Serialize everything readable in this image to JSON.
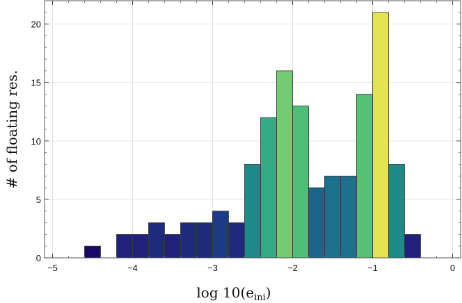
{
  "chart_data": {
    "type": "bar",
    "bin_width": 0.2,
    "bins": [
      {
        "start": -4.6,
        "end": -4.4,
        "count": 1,
        "color": "#1a0a66"
      },
      {
        "start": -4.2,
        "end": -4.0,
        "count": 2,
        "color": "#21207a"
      },
      {
        "start": -4.0,
        "end": -3.8,
        "count": 2,
        "color": "#21207a"
      },
      {
        "start": -3.8,
        "end": -3.6,
        "count": 3,
        "color": "#1e2a7e"
      },
      {
        "start": -3.6,
        "end": -3.4,
        "count": 2,
        "color": "#21207a"
      },
      {
        "start": -3.4,
        "end": -3.2,
        "count": 3,
        "color": "#1e2a7e"
      },
      {
        "start": -3.2,
        "end": -3.0,
        "count": 3,
        "color": "#1e2a7e"
      },
      {
        "start": -3.0,
        "end": -2.8,
        "count": 4,
        "color": "#1c3a85"
      },
      {
        "start": -2.8,
        "end": -2.6,
        "count": 3,
        "color": "#1e2a7e"
      },
      {
        "start": -2.6,
        "end": -2.4,
        "count": 8,
        "color": "#1e8a8a"
      },
      {
        "start": -2.4,
        "end": -2.2,
        "count": 12,
        "color": "#34ab85"
      },
      {
        "start": -2.2,
        "end": -2.0,
        "count": 16,
        "color": "#74cc72"
      },
      {
        "start": -2.0,
        "end": -1.8,
        "count": 13,
        "color": "#4ebf76"
      },
      {
        "start": -1.8,
        "end": -1.6,
        "count": 6,
        "color": "#1b658a"
      },
      {
        "start": -1.6,
        "end": -1.4,
        "count": 7,
        "color": "#1a718b"
      },
      {
        "start": -1.4,
        "end": -1.2,
        "count": 7,
        "color": "#1a718b"
      },
      {
        "start": -1.2,
        "end": -1.0,
        "count": 14,
        "color": "#56c274"
      },
      {
        "start": -1.0,
        "end": -0.8,
        "count": 21,
        "color": "#e3e354"
      },
      {
        "start": -0.8,
        "end": -0.6,
        "count": 8,
        "color": "#1e8a8a"
      },
      {
        "start": -0.6,
        "end": -0.4,
        "count": 2,
        "color": "#21207a"
      }
    ],
    "xlabel": "log 10(e",
    "xlabel_subscript": "ini",
    "xlabel_close": ")",
    "ylabel": "# of floating res.",
    "xlim": [
      -5.1,
      0.1
    ],
    "ylim": [
      0,
      22
    ],
    "x_ticks": [
      -5,
      -4,
      -3,
      -2,
      -1,
      0
    ],
    "x_tick_labels": [
      "−5",
      "−4",
      "−3",
      "−2",
      "−1",
      "0"
    ],
    "y_ticks": [
      0,
      5,
      10,
      15,
      20
    ],
    "y_tick_labels": [
      "0",
      "5",
      "10",
      "15",
      "20"
    ],
    "grid": true,
    "legend": "none"
  }
}
